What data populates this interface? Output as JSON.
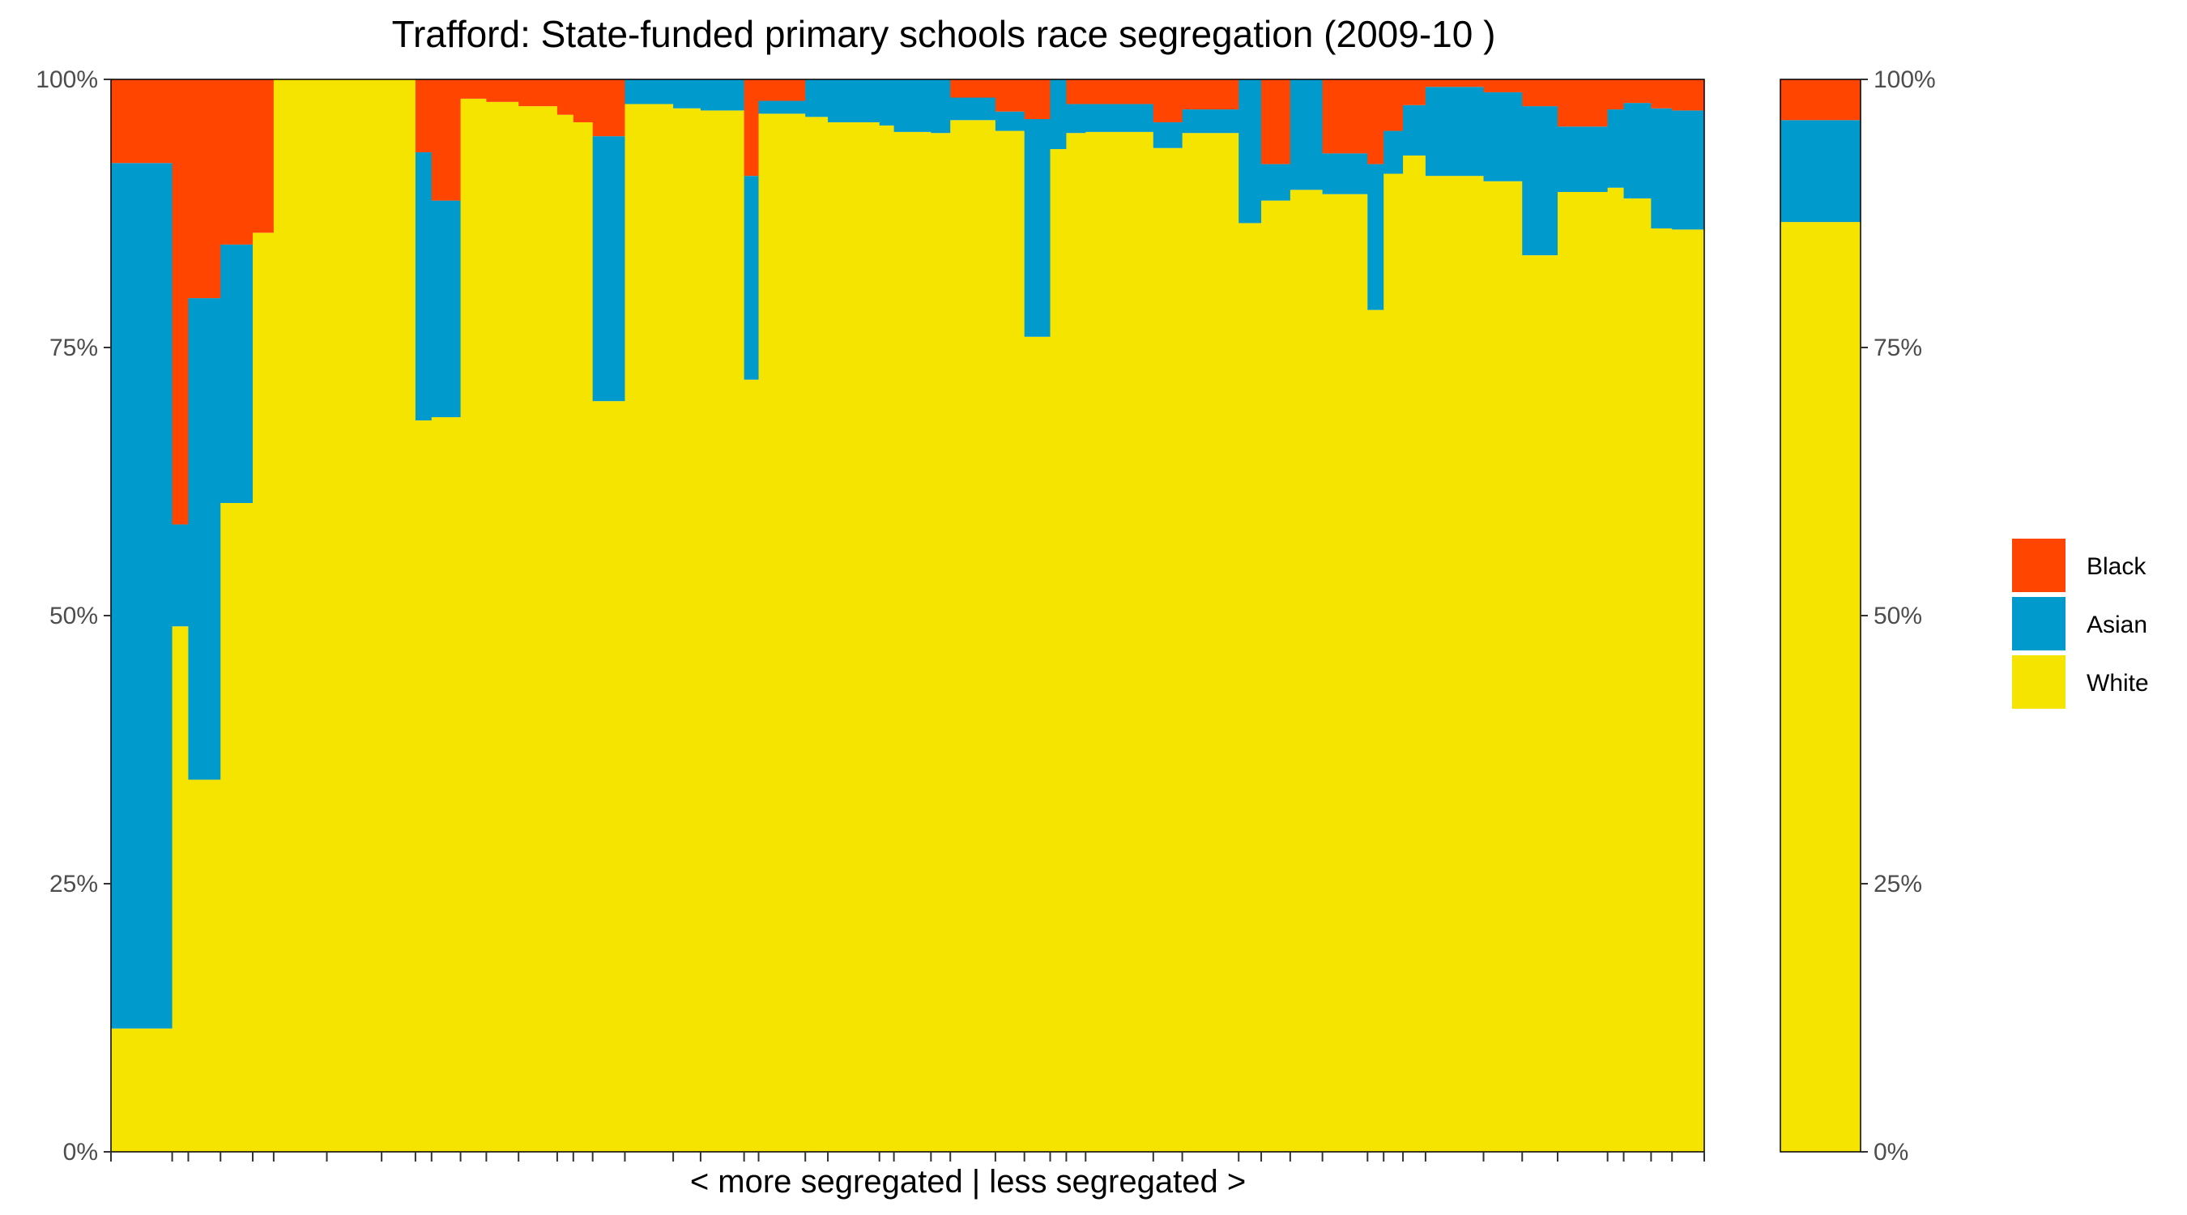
{
  "chart_data": {
    "type": "bar",
    "stacked": true,
    "variable_width": true,
    "title": "Trafford: State-funded primary schools race segregation (2009-10 )",
    "xlabel": "< more segregated | less segregated >",
    "ylabel": "",
    "ylim": [
      0,
      1
    ],
    "y_ticks": [
      "0%",
      "25%",
      "50%",
      "75%",
      "100%"
    ],
    "grid": false,
    "legend_position": "right",
    "colors": {
      "Black": "#FF4500",
      "Asian": "#009ACD",
      "White": "#F5E300"
    },
    "legend": [
      {
        "name": "Black",
        "color": "#FF4500"
      },
      {
        "name": "Asian",
        "color": "#009ACD"
      },
      {
        "name": "White",
        "color": "#F5E300"
      }
    ],
    "stack_order_bottom_to_top": [
      "White",
      "Asian",
      "Black"
    ],
    "schools": [
      {
        "w": 1.9,
        "white": 0.115,
        "asian": 0.807,
        "black": 0.078
      },
      {
        "w": 0.5,
        "white": 0.49,
        "asian": 0.095,
        "black": 0.415
      },
      {
        "w": 1.0,
        "white": 0.347,
        "asian": 0.449,
        "black": 0.204
      },
      {
        "w": 1.0,
        "white": 0.605,
        "asian": 0.241,
        "black": 0.154
      },
      {
        "w": 0.65,
        "white": 0.857,
        "asian": 0.0,
        "black": 0.143
      },
      {
        "w": 1.65,
        "white": 1.0,
        "asian": 0.0,
        "black": 0.0
      },
      {
        "w": 1.7,
        "white": 1.0,
        "asian": 0.0,
        "black": 0.0
      },
      {
        "w": 1.05,
        "white": 1.0,
        "asian": 0.0,
        "black": 0.0
      },
      {
        "w": 0.5,
        "white": 0.682,
        "asian": 0.25,
        "black": 0.068
      },
      {
        "w": 0.9,
        "white": 0.685,
        "asian": 0.202,
        "black": 0.113
      },
      {
        "w": 0.8,
        "white": 0.982,
        "asian": 0.0,
        "black": 0.018
      },
      {
        "w": 1.0,
        "white": 0.979,
        "asian": 0.0,
        "black": 0.021
      },
      {
        "w": 1.2,
        "white": 0.975,
        "asian": 0.0,
        "black": 0.025
      },
      {
        "w": 0.5,
        "white": 0.967,
        "asian": 0.0,
        "black": 0.033
      },
      {
        "w": 0.6,
        "white": 0.96,
        "asian": 0.0,
        "black": 0.04
      },
      {
        "w": 1.0,
        "white": 0.7,
        "asian": 0.247,
        "black": 0.053
      },
      {
        "w": 1.5,
        "white": 0.977,
        "asian": 0.023,
        "black": 0.0
      },
      {
        "w": 0.85,
        "white": 0.973,
        "asian": 0.027,
        "black": 0.0
      },
      {
        "w": 1.35,
        "white": 0.971,
        "asian": 0.029,
        "black": 0.0
      },
      {
        "w": 0.45,
        "white": 0.72,
        "asian": 0.19,
        "black": 0.09
      },
      {
        "w": 1.45,
        "white": 0.968,
        "asian": 0.012,
        "black": 0.02
      },
      {
        "w": 0.7,
        "white": 0.965,
        "asian": 0.035,
        "black": 0.0
      },
      {
        "w": 1.6,
        "white": 0.96,
        "asian": 0.04,
        "black": 0.0
      },
      {
        "w": 0.45,
        "white": 0.957,
        "asian": 0.043,
        "black": 0.0
      },
      {
        "w": 1.15,
        "white": 0.951,
        "asian": 0.049,
        "black": 0.0
      },
      {
        "w": 0.6,
        "white": 0.95,
        "asian": 0.05,
        "black": 0.0
      },
      {
        "w": 1.4,
        "white": 0.962,
        "asian": 0.021,
        "black": 0.017
      },
      {
        "w": 0.9,
        "white": 0.952,
        "asian": 0.018,
        "black": 0.03
      },
      {
        "w": 0.8,
        "white": 0.76,
        "asian": 0.203,
        "black": 0.037
      },
      {
        "w": 0.5,
        "white": 0.935,
        "asian": 0.065,
        "black": 0.0
      },
      {
        "w": 0.6,
        "white": 0.95,
        "asian": 0.027,
        "black": 0.023
      },
      {
        "w": 2.1,
        "white": 0.951,
        "asian": 0.026,
        "black": 0.023
      },
      {
        "w": 0.9,
        "white": 0.936,
        "asian": 0.024,
        "black": 0.04
      },
      {
        "w": 1.75,
        "white": 0.95,
        "asian": 0.022,
        "black": 0.028
      },
      {
        "w": 0.7,
        "white": 0.866,
        "asian": 0.134,
        "black": 0.0
      },
      {
        "w": 0.9,
        "white": 0.887,
        "asian": 0.034,
        "black": 0.079
      },
      {
        "w": 1.0,
        "white": 0.897,
        "asian": 0.103,
        "black": 0.0
      },
      {
        "w": 1.4,
        "white": 0.893,
        "asian": 0.038,
        "black": 0.069
      },
      {
        "w": 0.5,
        "white": 0.785,
        "asian": 0.136,
        "black": 0.079
      },
      {
        "w": 0.6,
        "white": 0.912,
        "asian": 0.04,
        "black": 0.048
      },
      {
        "w": 0.7,
        "white": 0.929,
        "asian": 0.047,
        "black": 0.024
      },
      {
        "w": 1.8,
        "white": 0.91,
        "asian": 0.083,
        "black": 0.007
      },
      {
        "w": 1.2,
        "white": 0.905,
        "asian": 0.083,
        "black": 0.012
      },
      {
        "w": 1.1,
        "white": 0.836,
        "asian": 0.139,
        "black": 0.025
      },
      {
        "w": 1.55,
        "white": 0.895,
        "asian": 0.061,
        "black": 0.044
      },
      {
        "w": 0.5,
        "white": 0.899,
        "asian": 0.073,
        "black": 0.028
      },
      {
        "w": 0.85,
        "white": 0.889,
        "asian": 0.089,
        "black": 0.022
      },
      {
        "w": 0.65,
        "white": 0.861,
        "asian": 0.112,
        "black": 0.027
      },
      {
        "w": 1.0,
        "white": 0.86,
        "asian": 0.111,
        "black": 0.029
      }
    ],
    "overall": {
      "white": 0.867,
      "asian": 0.095,
      "black": 0.038
    }
  }
}
